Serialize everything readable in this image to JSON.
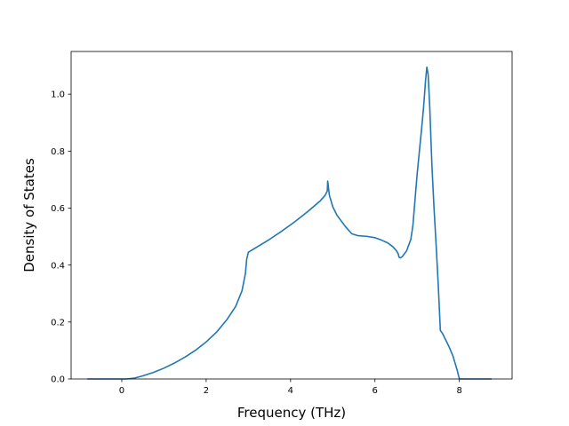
{
  "chart_data": {
    "type": "line",
    "title": "",
    "xlabel": "Frequency (THz)",
    "ylabel": "Density of States",
    "xlim": [
      -1.2,
      9.25
    ],
    "ylim": [
      0,
      1.15
    ],
    "xticks": [
      0,
      2,
      4,
      6,
      8
    ],
    "xtick_labels": [
      "0",
      "2",
      "4",
      "6",
      "8"
    ],
    "yticks": [
      0.0,
      0.2,
      0.4,
      0.6,
      0.8,
      1.0
    ],
    "ytick_labels": [
      "0.0",
      "0.2",
      "0.4",
      "0.6",
      "0.8",
      "1.0"
    ],
    "grid": false,
    "legend": "none",
    "series": [
      {
        "color": "#1f77b4",
        "x": [
          -0.8,
          -0.5,
          -0.2,
          0.0,
          0.1,
          0.3,
          0.5,
          0.75,
          1.0,
          1.25,
          1.5,
          1.75,
          2.0,
          2.25,
          2.5,
          2.7,
          2.85,
          2.93,
          2.96,
          3.0,
          3.2,
          3.5,
          3.8,
          4.1,
          4.4,
          4.7,
          4.82,
          4.87,
          4.88,
          4.92,
          5.0,
          5.1,
          5.2,
          5.3,
          5.45,
          5.6,
          5.8,
          6.0,
          6.15,
          6.3,
          6.42,
          6.5,
          6.55,
          6.57,
          6.6,
          6.65,
          6.7,
          6.75,
          6.8,
          6.85,
          6.9,
          6.95,
          7.0,
          7.1,
          7.15,
          7.2,
          7.23,
          7.26,
          7.3,
          7.35,
          7.4,
          7.45,
          7.5,
          7.55,
          7.6,
          7.65,
          7.7,
          7.75,
          7.85,
          7.9,
          7.95,
          7.98,
          8.0,
          8.1,
          8.3,
          8.5,
          8.75
        ],
        "y": [
          0.0,
          0.0,
          0.0,
          0.0,
          0.0,
          0.003,
          0.011,
          0.023,
          0.038,
          0.056,
          0.077,
          0.101,
          0.13,
          0.165,
          0.21,
          0.255,
          0.31,
          0.37,
          0.42,
          0.445,
          0.463,
          0.49,
          0.52,
          0.552,
          0.587,
          0.625,
          0.645,
          0.66,
          0.695,
          0.645,
          0.605,
          0.575,
          0.555,
          0.535,
          0.51,
          0.503,
          0.501,
          0.496,
          0.488,
          0.478,
          0.465,
          0.452,
          0.44,
          0.428,
          0.425,
          0.43,
          0.44,
          0.45,
          0.47,
          0.49,
          0.54,
          0.63,
          0.72,
          0.87,
          0.95,
          1.05,
          1.095,
          1.07,
          0.95,
          0.75,
          0.6,
          0.47,
          0.33,
          0.17,
          0.16,
          0.145,
          0.13,
          0.115,
          0.08,
          0.055,
          0.03,
          0.012,
          0.0,
          0.0,
          0.0,
          0.0,
          0.0
        ]
      }
    ]
  }
}
